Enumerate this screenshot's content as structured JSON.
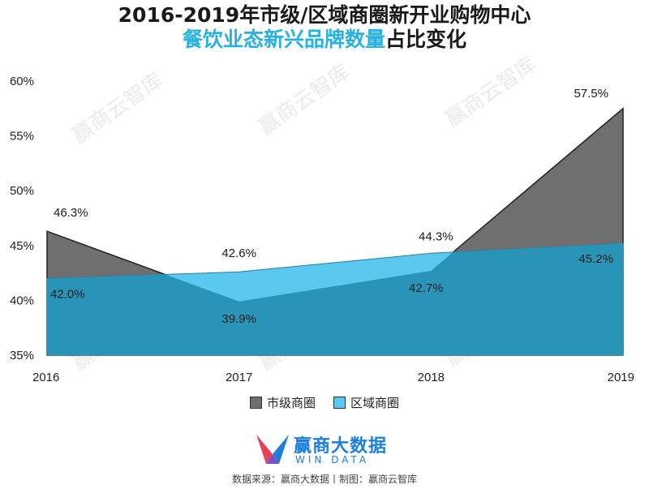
{
  "chart_data": {
    "type": "area",
    "title": "2016-2019年市级/区域商圈新开业购物中心",
    "subtitle_highlight": "餐饮业态新兴品牌数量",
    "subtitle_rest": "占比变化",
    "categories": [
      "2016",
      "2017",
      "2018",
      "2019"
    ],
    "ylim": [
      35,
      60
    ],
    "yticks": [
      35,
      40,
      45,
      50,
      55,
      60
    ],
    "ytick_labels": [
      "35%",
      "40%",
      "45%",
      "50%",
      "55%",
      "60%"
    ],
    "series": [
      {
        "name": "市级商圈",
        "values": [
          46.3,
          39.9,
          42.7,
          57.5
        ],
        "labels": [
          "46.3%",
          "39.9%",
          "42.7%",
          "57.5%"
        ],
        "color": "#6f6f6f"
      },
      {
        "name": "区域商圈",
        "values": [
          42.0,
          42.6,
          44.3,
          45.2
        ],
        "labels": [
          "42.0%",
          "42.6%",
          "44.3%",
          "45.2%"
        ],
        "color": "#5bc8f0",
        "dark_color": "#2a93b8"
      }
    ],
    "legend_position": "bottom",
    "grid": false
  },
  "watermark": "赢商云智库",
  "logo": {
    "cn": "赢商大数据",
    "en": "WIN DATA"
  },
  "source": "数据来源：赢商大数据丨制图：赢商云智库"
}
